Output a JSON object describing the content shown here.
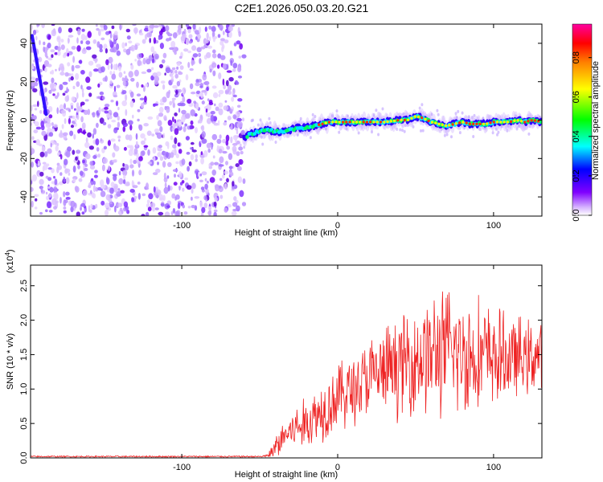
{
  "title": "C2E1.2026.050.03.20.G21",
  "chart_data": [
    {
      "type": "heatmap",
      "name": "spectrogram",
      "xlabel": "Height of straight line (km)",
      "ylabel": "Frequency (Hz)",
      "xlim": [
        -197,
        131
      ],
      "ylim": [
        -50,
        50
      ],
      "x_ticks": [
        {
          "v": -100,
          "label": "-100"
        },
        {
          "v": 0,
          "label": "0"
        },
        {
          "v": 100,
          "label": "100"
        }
      ],
      "y_ticks": [
        {
          "v": 40,
          "label": "40"
        },
        {
          "v": 20,
          "label": "20"
        },
        {
          "v": 0,
          "label": "0"
        },
        {
          "v": -20,
          "label": "-20"
        },
        {
          "v": -40,
          "label": "-40"
        }
      ],
      "noise_region_x": [
        -197,
        -60
      ],
      "ridge": {
        "x": [
          -60,
          -55,
          -50,
          -45,
          -40,
          -35,
          -30,
          -25,
          -20,
          -15,
          -10,
          -5,
          0,
          5,
          10,
          20,
          30,
          40,
          45,
          50,
          55,
          60,
          65,
          70,
          75,
          80,
          85,
          90,
          95,
          100,
          105,
          110,
          115,
          120,
          125,
          131
        ],
        "freq": [
          -9,
          -7,
          -6,
          -5,
          -6,
          -6,
          -5,
          -4,
          -4,
          -3,
          -2,
          -1,
          -1,
          -1,
          -1,
          -1,
          -1,
          0,
          0,
          2,
          1,
          -1,
          -2,
          -3,
          -2,
          -1,
          -2,
          -2,
          -2,
          -1,
          -1,
          -1,
          0,
          -1,
          0,
          -1
        ]
      },
      "colorbar": {
        "label": "Normalized spectral amplitude",
        "range": [
          0,
          0.97
        ],
        "ticks": [
          {
            "v": 0.0,
            "label": "0.0"
          },
          {
            "v": 0.2,
            "label": "0.2"
          },
          {
            "v": 0.4,
            "label": "0.4"
          },
          {
            "v": 0.6,
            "label": "0.6"
          },
          {
            "v": 0.8,
            "label": "0.8"
          }
        ],
        "colors": [
          "#e0c0ff",
          "#7a00ff",
          "#0000ff",
          "#00ffff",
          "#00ff00",
          "#ffff00",
          "#ff8000",
          "#ff0000",
          "#ff00a0"
        ]
      }
    },
    {
      "type": "line",
      "name": "snr",
      "xlabel": "Height of straight line (km)",
      "ylabel": "SNR (10 * v/v)",
      "exponent_label": "(x10",
      "exponent_sup": "4",
      "exponent_close": ")",
      "xlim": [
        -197,
        131
      ],
      "ylim": [
        0,
        2.8
      ],
      "x_ticks": [
        {
          "v": -100,
          "label": "-100"
        },
        {
          "v": 0,
          "label": "0"
        },
        {
          "v": 100,
          "label": "100"
        }
      ],
      "y_ticks": [
        {
          "v": 0.0,
          "label": "0.0"
        },
        {
          "v": 0.5,
          "label": "0.5"
        },
        {
          "v": 1.0,
          "label": "1.0"
        },
        {
          "v": 1.5,
          "label": "1.5"
        },
        {
          "v": 2.0,
          "label": "2.0"
        },
        {
          "v": 2.5,
          "label": "2.5"
        }
      ],
      "envelope": {
        "x": [
          -197,
          -50,
          -45,
          -40,
          -35,
          -30,
          -20,
          -10,
          0,
          10,
          20,
          30,
          40,
          50,
          60,
          70,
          80,
          90,
          100,
          110,
          120,
          131
        ],
        "mean": [
          0.02,
          0.02,
          0.03,
          0.15,
          0.3,
          0.4,
          0.5,
          0.7,
          0.9,
          1.0,
          1.15,
          1.25,
          1.35,
          1.45,
          1.5,
          1.55,
          1.5,
          1.5,
          1.45,
          1.45,
          1.45,
          1.5
        ],
        "spread": [
          0.01,
          0.01,
          0.03,
          0.2,
          0.3,
          0.35,
          0.45,
          0.55,
          0.6,
          0.65,
          0.7,
          0.75,
          0.85,
          0.95,
          1.05,
          1.1,
          1.05,
          1.0,
          0.85,
          0.75,
          0.65,
          0.6
        ]
      },
      "color": "#ee2222"
    }
  ]
}
